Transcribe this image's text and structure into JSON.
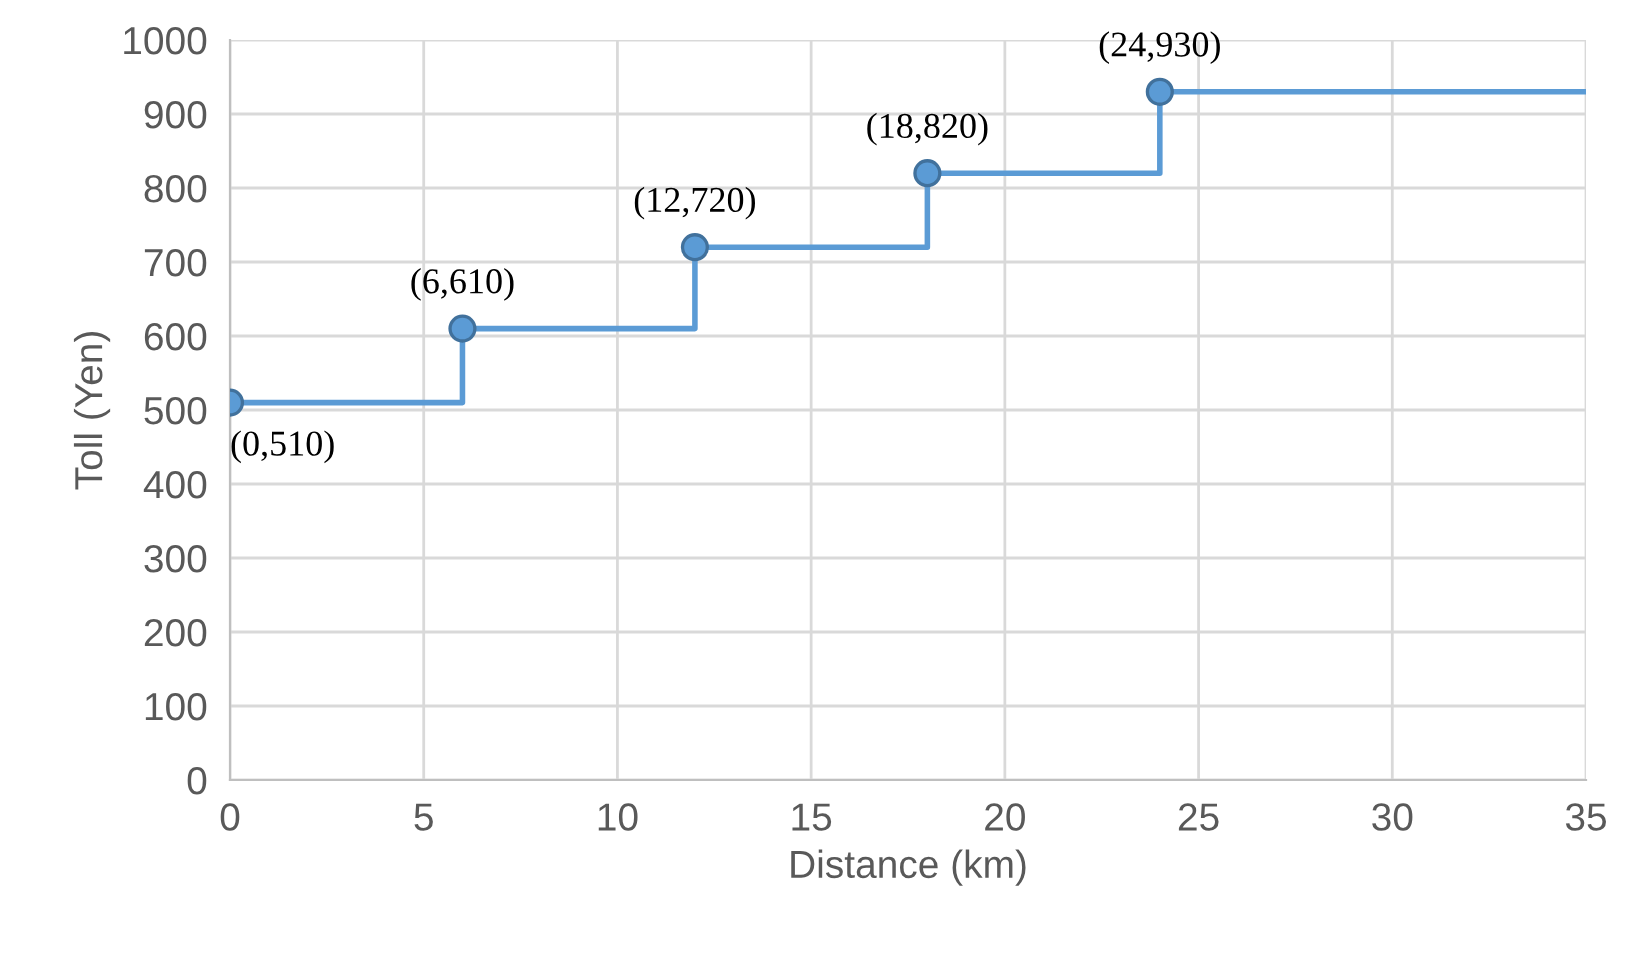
{
  "chart_data": {
    "type": "step",
    "xlabel": "Distance (km)",
    "ylabel": "Toll (Yen)",
    "xlim": [
      0,
      35
    ],
    "xticks": [
      0,
      5,
      10,
      15,
      20,
      25,
      30,
      35
    ],
    "ylim": [
      0,
      1000
    ],
    "yticks": [
      0,
      100,
      200,
      300,
      400,
      500,
      600,
      700,
      800,
      900,
      1000
    ],
    "grid": true,
    "legend": false,
    "series": [
      {
        "color": "#5b9bd5",
        "x": [
          0,
          6,
          12,
          18,
          24,
          35
        ],
        "values": [
          510,
          610,
          720,
          820,
          930,
          930
        ],
        "marker": "none"
      },
      {
        "type": "scatter",
        "color": "#5b9bd5",
        "x": [
          0,
          6,
          12,
          18,
          24
        ],
        "values": [
          510,
          610,
          720,
          820,
          930
        ],
        "marker": "circle"
      }
    ],
    "annotations": [
      {
        "text": "(0,510)",
        "x": 0,
        "y": 510
      },
      {
        "text": "(6,610)",
        "x": 6,
        "y": 610
      },
      {
        "text": "(12,720)",
        "x": 12,
        "y": 720
      },
      {
        "text": "(18,820)",
        "x": 18,
        "y": 820
      },
      {
        "text": "(24,930)",
        "x": 24,
        "y": 930
      }
    ]
  }
}
